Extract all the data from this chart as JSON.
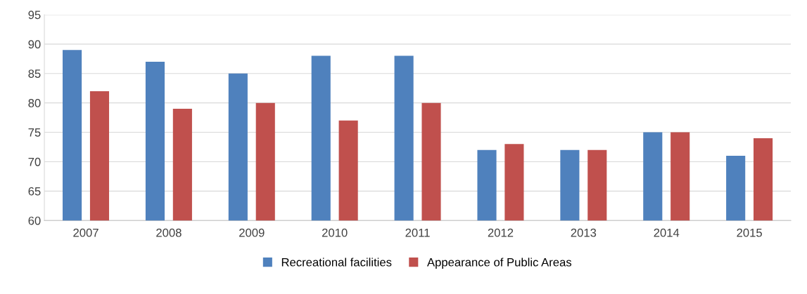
{
  "chart_data": {
    "type": "bar",
    "categories": [
      "2007",
      "2008",
      "2009",
      "2010",
      "2011",
      "2012",
      "2013",
      "2014",
      "2015"
    ],
    "series": [
      {
        "name": "Recreational facilities",
        "color": "#4f81bd",
        "values": [
          89,
          87,
          85,
          88,
          88,
          72,
          72,
          75,
          71
        ]
      },
      {
        "name": "Appearance of Public Areas",
        "color": "#c0504d",
        "values": [
          82,
          79,
          80,
          77,
          80,
          73,
          72,
          75,
          74
        ]
      }
    ],
    "ylim": [
      60,
      95
    ],
    "yticks": [
      60,
      65,
      70,
      75,
      80,
      85,
      90,
      95
    ],
    "grid": "y",
    "legend": "bottom"
  }
}
